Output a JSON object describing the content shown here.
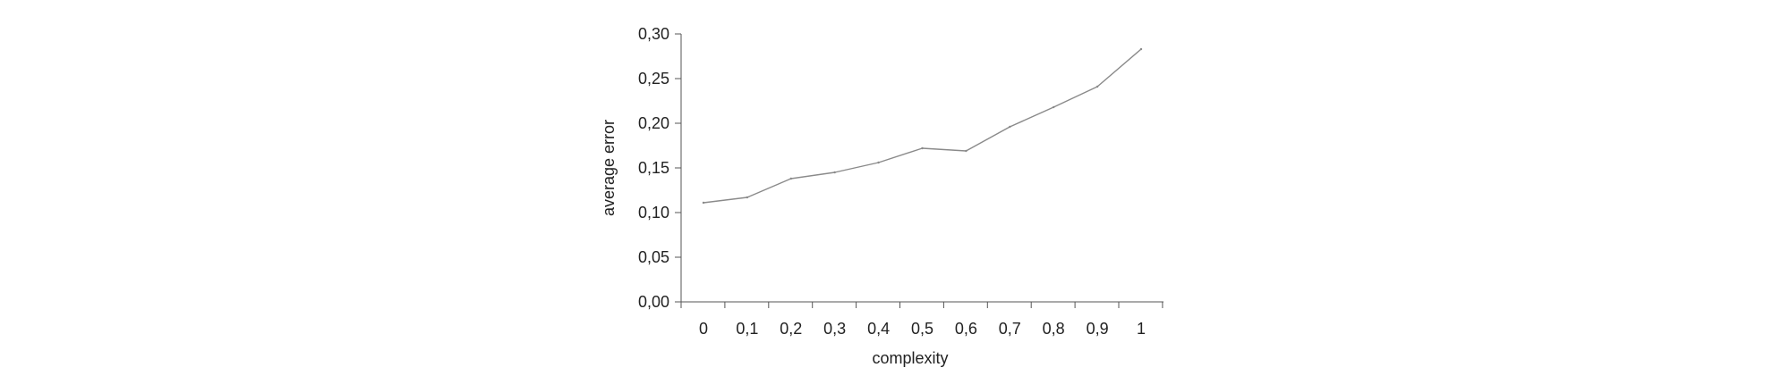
{
  "chart_data": {
    "type": "line",
    "title": "",
    "xlabel": "complexity",
    "ylabel": "average error",
    "x": [
      "0",
      "0,1",
      "0,2",
      "0,3",
      "0,4",
      "0,5",
      "0,6",
      "0,7",
      "0,8",
      "0,9",
      "1"
    ],
    "series": [
      {
        "values": [
          0.111,
          0.117,
          0.138,
          0.145,
          0.156,
          0.172,
          0.169,
          0.196,
          0.218,
          0.241,
          0.283
        ]
      }
    ],
    "y_ticks": [
      "0,00",
      "0,05",
      "0,10",
      "0,15",
      "0,20",
      "0,25",
      "0,30"
    ],
    "ylim": [
      0,
      0.3
    ],
    "grid": false,
    "legend": "none",
    "colors": {
      "line": "#8a8a8a",
      "axis": "#555555",
      "text": "#222222"
    }
  }
}
